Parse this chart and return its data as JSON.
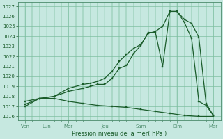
{
  "bg_color": "#c6e8e0",
  "grid_color": "#7dbfa0",
  "line_color": "#1a5c2a",
  "spine_color": "#4a8a6a",
  "xlabel": "Pression niveau de la mer( hPa )",
  "ylim": [
    1016.0,
    1027.0
  ],
  "yticks": [
    1016,
    1017,
    1018,
    1019,
    1020,
    1021,
    1022,
    1023,
    1024,
    1025,
    1026,
    1027
  ],
  "xlim": [
    0,
    14
  ],
  "major_xtick_positions": [
    0.5,
    2.0,
    3.5,
    6.0,
    8.5,
    11.0,
    13.5
  ],
  "major_xtick_labels": [
    "Ven",
    "Lun",
    "Mer",
    "Jeu",
    "Sam",
    "Dim",
    "Mar"
  ],
  "minor_xtick_positions": [
    1.0,
    1.5,
    2.5,
    3.0,
    4.0,
    4.5,
    5.0,
    5.5,
    6.5,
    7.0,
    7.5,
    8.0,
    9.0,
    9.5,
    10.0,
    10.5,
    11.5,
    12.0,
    12.5,
    13.0
  ],
  "series1_x": [
    0.5,
    1.5,
    2.5,
    3.5,
    4.5,
    5.0,
    5.5,
    6.0,
    6.5,
    7.0,
    7.5,
    8.0,
    8.5,
    9.0,
    9.5,
    10.0,
    10.5,
    11.0,
    11.5,
    12.0,
    12.5,
    13.0,
    13.5
  ],
  "series1_y": [
    1017.0,
    1017.8,
    1018.0,
    1018.5,
    1018.8,
    1019.0,
    1019.2,
    1019.2,
    1019.8,
    1020.8,
    1021.1,
    1022.3,
    1023.1,
    1024.4,
    1024.4,
    1021.0,
    1026.5,
    1026.5,
    1025.4,
    1023.8,
    1017.5,
    1017.1,
    1016.1
  ],
  "series2_x": [
    0.5,
    1.5,
    2.5,
    3.5,
    4.5,
    5.0,
    5.5,
    6.0,
    6.5,
    7.0,
    7.5,
    8.0,
    8.5,
    9.0,
    9.5,
    10.0,
    10.5,
    11.0,
    11.5,
    12.0,
    12.5,
    13.0,
    13.5
  ],
  "series2_y": [
    1017.2,
    1017.8,
    1018.0,
    1018.8,
    1019.2,
    1019.3,
    1019.5,
    1019.8,
    1020.5,
    1021.5,
    1022.2,
    1022.8,
    1023.2,
    1024.3,
    1024.5,
    1025.0,
    1026.5,
    1026.5,
    1025.7,
    1025.3,
    1023.9,
    1017.3,
    1016.1
  ],
  "series3_x": [
    0.5,
    1.5,
    2.5,
    3.5,
    4.5,
    5.5,
    6.5,
    7.5,
    8.5,
    9.5,
    10.5,
    11.5,
    12.5,
    13.5
  ],
  "series3_y": [
    1017.5,
    1017.8,
    1017.8,
    1017.5,
    1017.3,
    1017.1,
    1017.0,
    1016.9,
    1016.7,
    1016.5,
    1016.3,
    1016.1,
    1016.0,
    1016.0
  ]
}
